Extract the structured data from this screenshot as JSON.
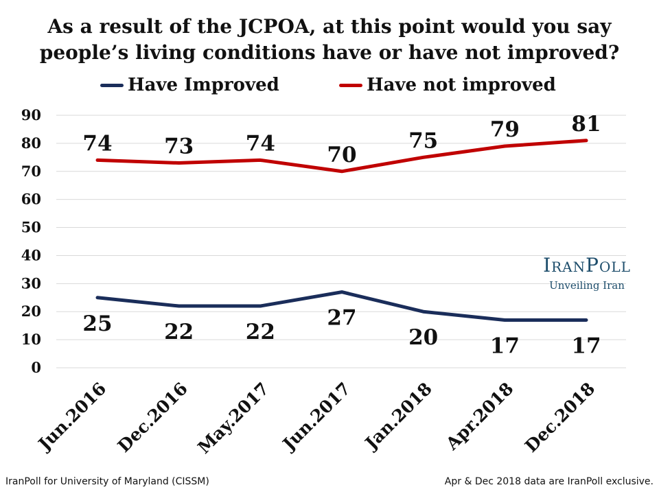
{
  "title_lines": [
    "As a result of the JCPOA, at this point would you say",
    "people’s living conditions have or have not improved?"
  ],
  "legend": {
    "items": [
      {
        "label": "Have Improved",
        "color": "#1a2d5a"
      },
      {
        "label": "Have not improved",
        "color": "#c00000"
      }
    ]
  },
  "brand": {
    "name": "IranPoll",
    "tagline": "Unveiling Iran"
  },
  "footnotes": {
    "left": "IranPoll for University of Maryland (CISSM)",
    "right": "Apr & Dec 2018 data are IranPoll exclusive."
  },
  "chart_data": {
    "type": "line",
    "title": "As a result of the JCPOA, at this point would you say people’s living conditions have or have not improved?",
    "categories": [
      "Jun.2016",
      "Dec.2016",
      "May.2017",
      "Jun.2017",
      "Jan.2018",
      "Apr.2018",
      "Dec.2018"
    ],
    "series": [
      {
        "name": "Have Improved",
        "color": "#1a2d5a",
        "values": [
          25,
          22,
          22,
          27,
          20,
          17,
          17
        ],
        "label_position": "below"
      },
      {
        "name": "Have not improved",
        "color": "#c00000",
        "values": [
          74,
          73,
          74,
          70,
          75,
          79,
          81
        ],
        "label_position": "above"
      }
    ],
    "y_ticks": [
      0,
      10,
      20,
      30,
      40,
      50,
      60,
      70,
      80,
      90
    ],
    "ylim": [
      0,
      90
    ],
    "grid": true,
    "legend_position": "top"
  }
}
